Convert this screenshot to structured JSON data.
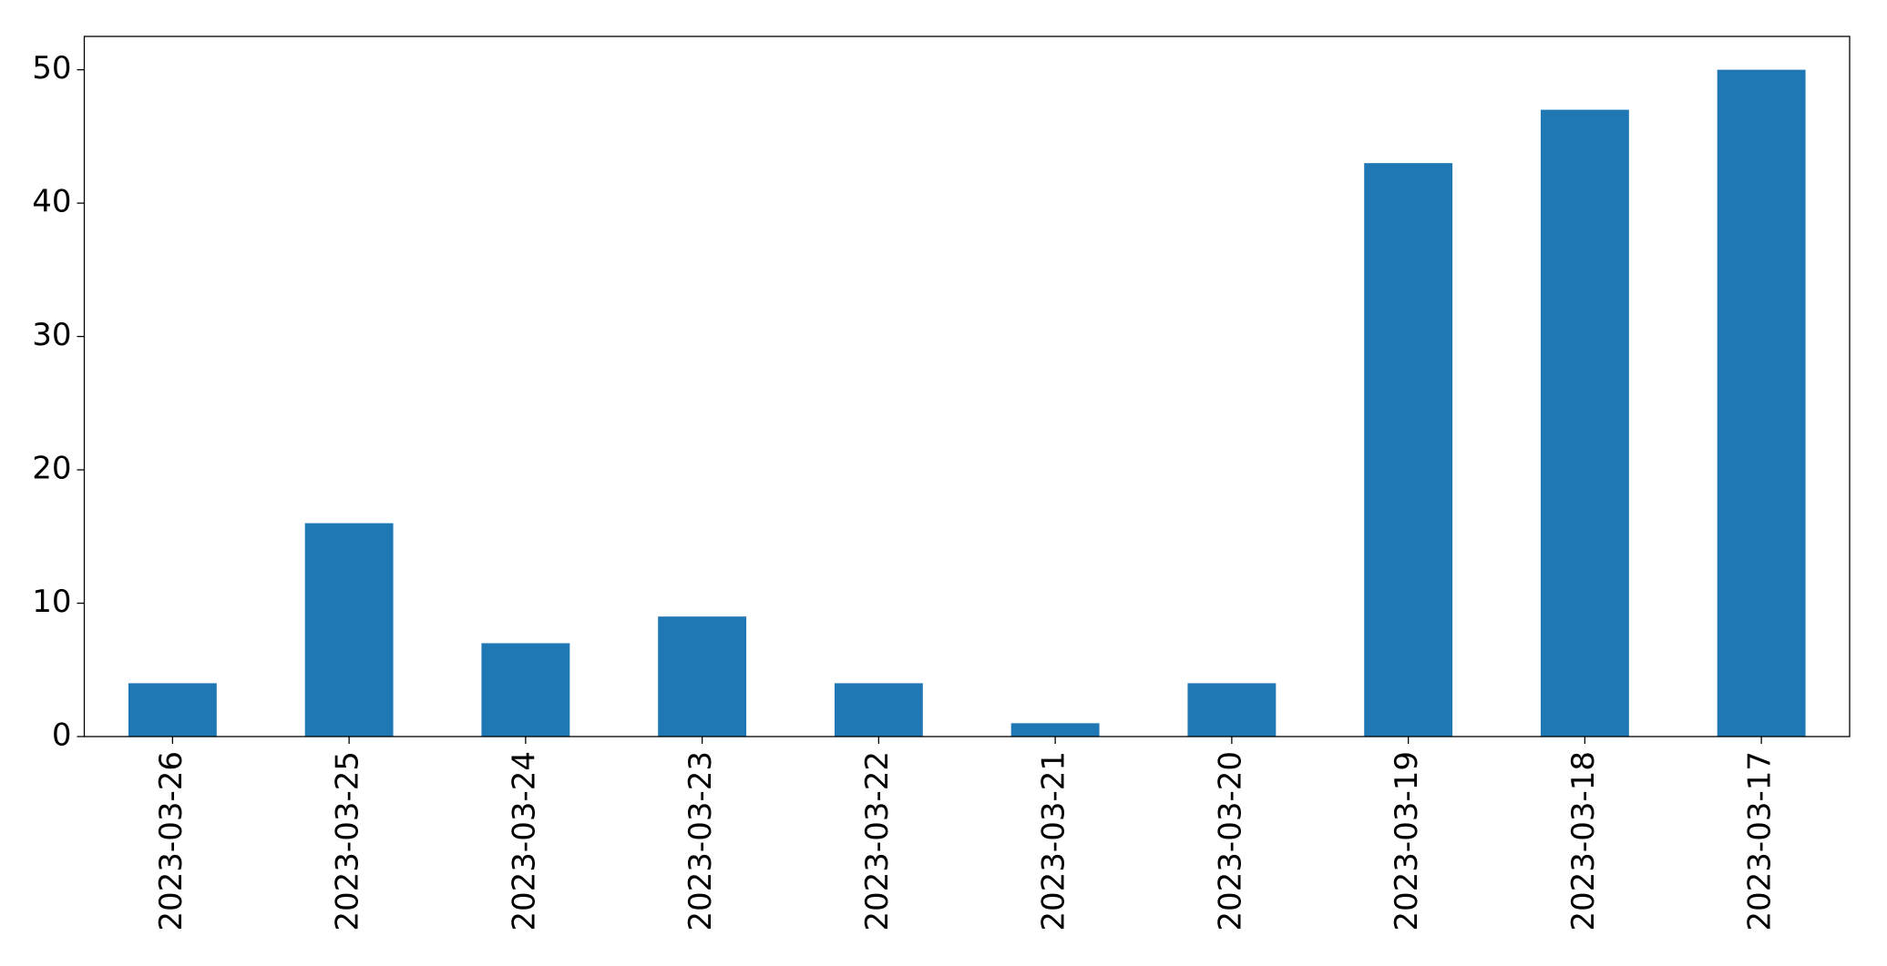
{
  "chart_data": {
    "type": "bar",
    "categories": [
      "2023-03-26",
      "2023-03-25",
      "2023-03-24",
      "2023-03-23",
      "2023-03-22",
      "2023-03-21",
      "2023-03-20",
      "2023-03-19",
      "2023-03-18",
      "2023-03-17"
    ],
    "values": [
      4,
      16,
      7,
      9,
      4,
      1,
      4,
      43,
      47,
      50
    ],
    "color": "#1f77b4",
    "ylim": [
      0,
      52.5
    ],
    "yticks": [
      0,
      10,
      20,
      30,
      40,
      50
    ],
    "grid": false
  }
}
